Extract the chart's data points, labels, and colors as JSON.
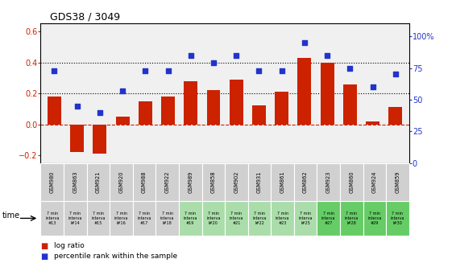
{
  "title": "GDS38 / 3049",
  "samples": [
    "GSM980",
    "GSM863",
    "GSM921",
    "GSM920",
    "GSM988",
    "GSM922",
    "GSM989",
    "GSM858",
    "GSM902",
    "GSM931",
    "GSM861",
    "GSM862",
    "GSM923",
    "GSM860",
    "GSM924",
    "GSM859"
  ],
  "time_labels": [
    "7 min\ninterva\n#13",
    "7 min\ninterva\nl#14",
    "7 min\ninterva\n#15",
    "7 min\ninterva\nl#16",
    "7 min\ninterva\n#17",
    "7 min\ninterva\nl#18",
    "7 min\ninterva\n#19",
    "7 min\ninterva\nl#20",
    "7 min\ninterva\n#21",
    "7 min\ninterva\nl#22",
    "7 min\ninterva\n#23",
    "7 min\ninterva\nl#25",
    "7 min\ninterva\n#27",
    "7 min\ninterva\nl#28",
    "7 min\ninterva\n#29",
    "7 min\ninterva\nl#30"
  ],
  "log_ratio": [
    0.18,
    -0.18,
    -0.19,
    0.05,
    0.15,
    0.18,
    0.28,
    0.22,
    0.29,
    0.12,
    0.21,
    0.43,
    0.4,
    0.26,
    0.02,
    0.11
  ],
  "percentile_pct": [
    73,
    45,
    40,
    57,
    73,
    73,
    85,
    79,
    85,
    73,
    73,
    95,
    85,
    75,
    60,
    70
  ],
  "bar_color": "#cc2200",
  "dot_color": "#2233cc",
  "ylim_left": [
    -0.25,
    0.65
  ],
  "ylim_right": [
    0,
    110
  ],
  "yticks_left": [
    -0.2,
    0.0,
    0.2,
    0.4,
    0.6
  ],
  "yticks_right": [
    0,
    25,
    50,
    75,
    100
  ],
  "ytick_right_labels": [
    "0",
    "25",
    "50",
    "75",
    "100%"
  ],
  "hlines": [
    0.2,
    0.4
  ],
  "hline_color": "black",
  "zero_line_color": "#cc2200",
  "plot_bg": "#f0f0f0",
  "gsm_bg_gray": "#d0d0d0",
  "time_bg_colors_left": "#d0d0d0",
  "time_bg_colors_mid": "#aaddaa",
  "time_bg_colors_right": "#66cc66",
  "time_color_indices": [
    0,
    0,
    0,
    0,
    0,
    0,
    1,
    1,
    1,
    1,
    1,
    1,
    2,
    2,
    2,
    2
  ],
  "legend_log": "log ratio",
  "legend_pct": "percentile rank within the sample",
  "bar_width": 0.6
}
